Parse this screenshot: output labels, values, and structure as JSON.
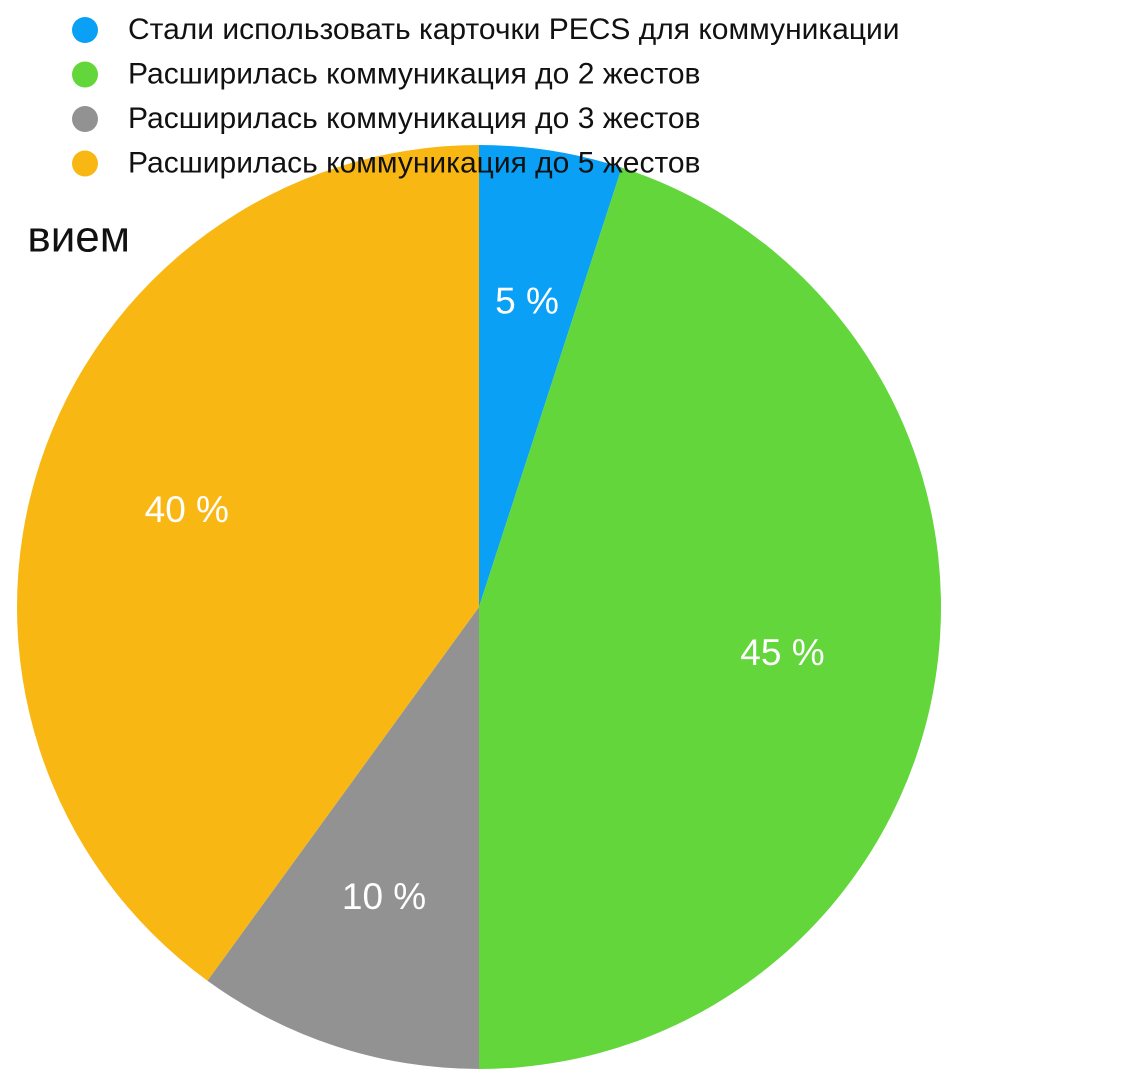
{
  "chart_data": {
    "type": "pie",
    "annotation": "вием",
    "categories": [
      "Стали использовать карточки PECS для коммуникации",
      "Расширилась коммуникация до 2 жестов",
      "Расширилась коммуникация до 3 жестов",
      "Расширилась коммуникация до 5 жестов"
    ],
    "values": [
      5,
      45,
      10,
      40
    ],
    "value_labels": [
      "5 %",
      "45 %",
      "10 %",
      "40 %"
    ],
    "colors": [
      "#0aa0f6",
      "#62d63a",
      "#929292",
      "#f9b714"
    ],
    "legend": "top"
  }
}
